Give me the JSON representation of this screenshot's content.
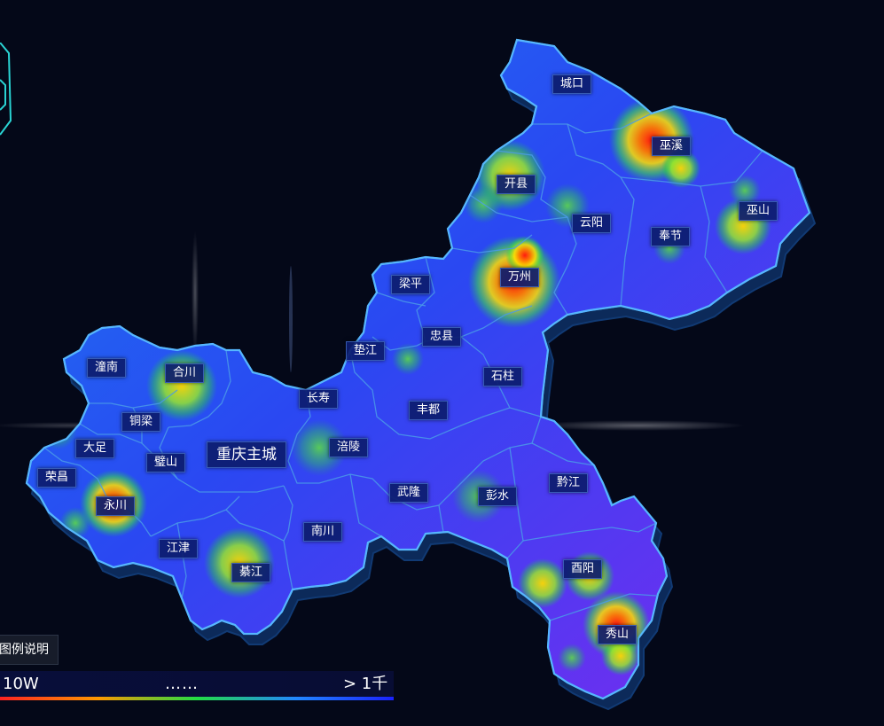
{
  "map": {
    "districts": [
      {
        "id": "chengkou",
        "label": "城口"
      },
      {
        "id": "wuxi",
        "label": "巫溪"
      },
      {
        "id": "kaixian",
        "label": "开县"
      },
      {
        "id": "wushan",
        "label": "巫山"
      },
      {
        "id": "yunyang",
        "label": "云阳"
      },
      {
        "id": "fengjie",
        "label": "奉节"
      },
      {
        "id": "wanzhou",
        "label": "万州"
      },
      {
        "id": "liangping",
        "label": "梁平"
      },
      {
        "id": "zhongxian",
        "label": "忠县"
      },
      {
        "id": "dianjiang",
        "label": "垫江"
      },
      {
        "id": "shizhu",
        "label": "石柱"
      },
      {
        "id": "tongnan",
        "label": "潼南"
      },
      {
        "id": "hechuan",
        "label": "合川"
      },
      {
        "id": "changshou",
        "label": "长寿"
      },
      {
        "id": "fengdu",
        "label": "丰都"
      },
      {
        "id": "tongliang",
        "label": "铜梁"
      },
      {
        "id": "dazu",
        "label": "大足"
      },
      {
        "id": "fuling",
        "label": "涪陵"
      },
      {
        "id": "chongqing",
        "label": "重庆主城"
      },
      {
        "id": "bishan",
        "label": "璧山"
      },
      {
        "id": "rongchang",
        "label": "荣昌"
      },
      {
        "id": "qianjiang",
        "label": "黔江"
      },
      {
        "id": "wulong",
        "label": "武隆"
      },
      {
        "id": "pengshui",
        "label": "彭水"
      },
      {
        "id": "yongchuan",
        "label": "永川"
      },
      {
        "id": "nanchuan",
        "label": "南川"
      },
      {
        "id": "jiangjin",
        "label": "江津"
      },
      {
        "id": "youyang",
        "label": "酉阳"
      },
      {
        "id": "qijiang",
        "label": "綦江"
      },
      {
        "id": "xiushan",
        "label": "秀山"
      }
    ]
  },
  "legend": {
    "title": "图例说明",
    "min_label": "10W",
    "dots": "……",
    "max_label": "> 1千"
  },
  "colors": {
    "background": "#040818",
    "map_fill": "#2458f0",
    "border": "#3f8fd8",
    "hot": "#ff2a1a",
    "warm": "#ffd400",
    "cool": "#3ce83c"
  }
}
